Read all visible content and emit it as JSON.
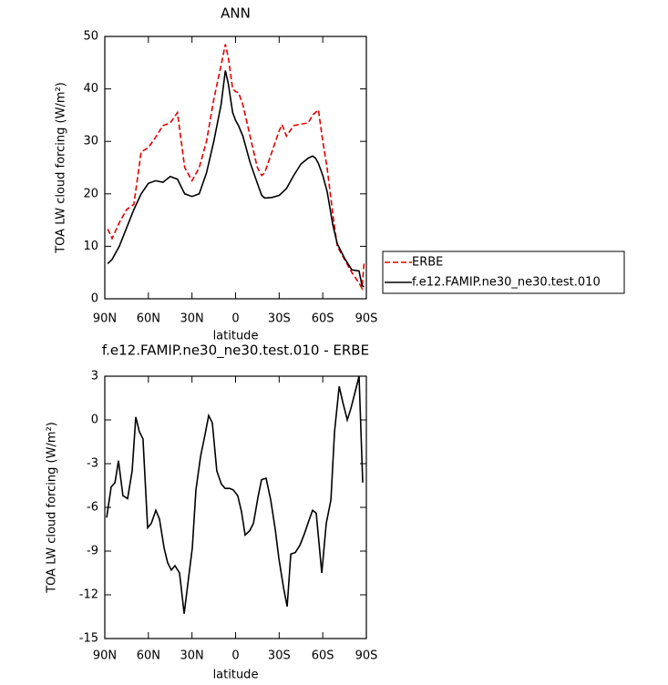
{
  "chart_data": [
    {
      "type": "line",
      "title": "ANN",
      "xlabel": "latitude",
      "ylabel": "TOA LW cloud forcing (W/m²)",
      "x": [
        88,
        85,
        80,
        75,
        70,
        65,
        60,
        55,
        50,
        45,
        40,
        35,
        30,
        25,
        20,
        15,
        10,
        7,
        5,
        2,
        0,
        -2,
        -5,
        -10,
        -15,
        -18,
        -20,
        -25,
        -30,
        -32,
        -35,
        -40,
        -45,
        -50,
        -53,
        -55,
        -57,
        -60,
        -63,
        -67,
        -70,
        -75,
        -80,
        -85,
        -87,
        -88.5
      ],
      "series": [
        {
          "name": "ERBE",
          "color": "#e00000",
          "line_style": "dashed",
          "values": [
            13.3,
            11.5,
            14.5,
            17,
            18,
            28,
            28.8,
            30.8,
            33,
            33.5,
            35.5,
            25,
            22.5,
            25,
            30,
            38,
            44.5,
            48.5,
            46,
            40,
            39.5,
            39.3,
            37,
            31,
            25,
            23.5,
            24,
            28,
            32,
            33.2,
            31,
            33,
            33.3,
            33.5,
            35,
            35.5,
            36,
            30,
            25,
            16,
            10,
            7.5,
            5,
            3,
            2,
            7
          ]
        },
        {
          "name": "f.e12.FAMIP.ne30_ne30.test.010",
          "color": "#000000",
          "line_style": "solid",
          "values": [
            6.7,
            7.5,
            10,
            13.5,
            17,
            20,
            22,
            22.5,
            22.2,
            23.3,
            22.8,
            20,
            19.5,
            20,
            24,
            30,
            37,
            43.5,
            41,
            35.5,
            34,
            33,
            31,
            26,
            22,
            19.7,
            19.2,
            19.3,
            19.7,
            20.2,
            21,
            23.5,
            25.7,
            26.8,
            27.2,
            26.8,
            25.8,
            23.5,
            20.5,
            14,
            10.5,
            7.7,
            5.5,
            5.3,
            2.5,
            2.3
          ]
        }
      ],
      "xlim": [
        90,
        -90
      ],
      "xticks": [
        {
          "value": 90,
          "label": "90N"
        },
        {
          "value": 60,
          "label": "60N"
        },
        {
          "value": 30,
          "label": "30N"
        },
        0,
        {
          "value": -30,
          "label": "30S"
        },
        {
          "value": -60,
          "label": "60S"
        },
        {
          "value": -90,
          "label": "90S"
        }
      ],
      "ylim": [
        0,
        50
      ],
      "yticks": [
        0,
        10,
        20,
        30,
        40,
        50
      ],
      "legend": "right"
    },
    {
      "type": "line",
      "title": "f.e12.FAMIP.ne30_ne30.test.010 - ERBE",
      "xlabel": "latitude",
      "ylabel": "TOA LW cloud forcing (W/m²)",
      "x": [
        88.75,
        85.6,
        83,
        80.6,
        77.5,
        74.3,
        71.2,
        68.7,
        66.2,
        63.7,
        60.5,
        58,
        54.9,
        52.4,
        49.2,
        46.7,
        44.2,
        41.7,
        38.6,
        35.4,
        32.9,
        29.8,
        27.3,
        24.1,
        21,
        18.5,
        16,
        12.9,
        9.8,
        7.2,
        4.1,
        1.6,
        -1.5,
        -4.1,
        -6.6,
        -9.7,
        -12.3,
        -15.4,
        -17.9,
        -21,
        -24.2,
        -27.3,
        -29.8,
        -33,
        -35.5,
        -38,
        -41.1,
        -44.3,
        -47.4,
        -50.5,
        -53,
        -55.5,
        -59.3,
        -62.4,
        -65.6,
        -68.1,
        -71.3,
        -73.8,
        -76.9,
        -79.4,
        -82.5,
        -85,
        -87.5
      ],
      "values": [
        -6.7,
        -4.6,
        -4.3,
        -2.8,
        -5.2,
        -5.4,
        -3.5,
        0.2,
        -0.8,
        -1.3,
        -7.4,
        -7.1,
        -6.2,
        -6.8,
        -8.8,
        -9.8,
        -10.3,
        -10,
        -10.5,
        -13.3,
        -11.3,
        -8.8,
        -4.8,
        -2.5,
        -1,
        0.3,
        -0.2,
        -3.5,
        -4.4,
        -4.7,
        -4.7,
        -4.8,
        -5.2,
        -6.3,
        -7.9,
        -7.6,
        -7.1,
        -5.3,
        -4.1,
        -4,
        -5.5,
        -7.5,
        -9.5,
        -11.5,
        -12.8,
        -9.2,
        -9.1,
        -8.6,
        -7.8,
        -6.9,
        -6.2,
        -6.4,
        -10.5,
        -7.1,
        -5.5,
        -0.8,
        2.3,
        1.2,
        0,
        0.8,
        2,
        3,
        -4.3
      ],
      "color": "#000000",
      "xlim": [
        90,
        -90
      ],
      "xticks": [
        {
          "value": 90,
          "label": "90N"
        },
        {
          "value": 60,
          "label": "60N"
        },
        {
          "value": 30,
          "label": "30N"
        },
        0,
        {
          "value": -30,
          "label": "30S"
        },
        {
          "value": -60,
          "label": "60S"
        },
        {
          "value": -90,
          "label": "90S"
        }
      ],
      "ylim": [
        -15,
        3
      ],
      "yticks": [
        -15,
        -12,
        -9,
        -6,
        -3,
        0,
        3
      ]
    }
  ]
}
